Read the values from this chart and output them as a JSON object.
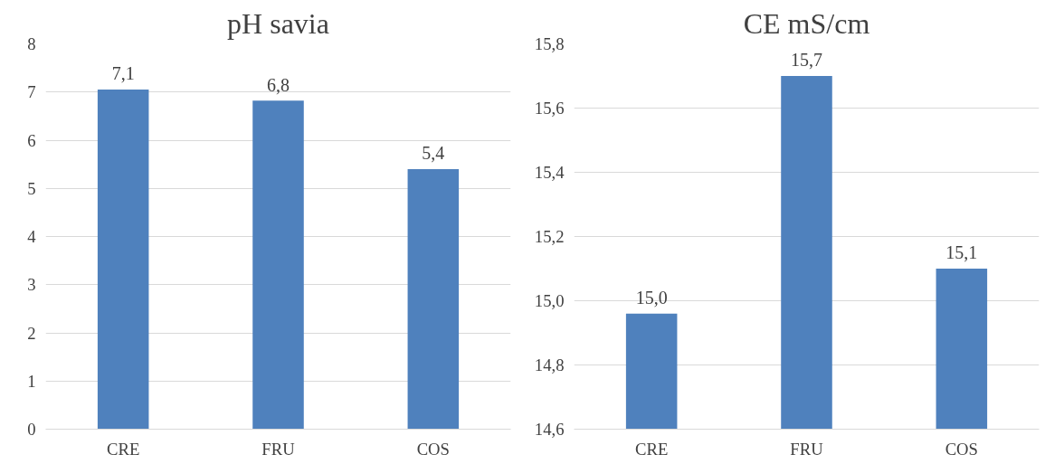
{
  "chart_data": [
    {
      "type": "bar",
      "title": "pH savia",
      "categories": [
        "CRE",
        "FRU",
        "COS"
      ],
      "values": [
        7.05,
        6.82,
        5.4
      ],
      "value_labels": [
        "7,1",
        "6,8",
        "5,4"
      ],
      "color": "#4f81bd",
      "ylim": [
        0,
        8
      ],
      "yticks": [
        0,
        1,
        2,
        3,
        4,
        5,
        6,
        7,
        8
      ],
      "grid": "y"
    },
    {
      "type": "bar",
      "title": "CE mS/cm",
      "categories": [
        "CRE",
        "FRU",
        "COS"
      ],
      "values": [
        14.96,
        15.7,
        15.1
      ],
      "value_labels": [
        "15,0",
        "15,7",
        "15,1"
      ],
      "color": "#4f81bd",
      "ylim": [
        14.6,
        15.8
      ],
      "yticks": [
        {
          "value": 14.6,
          "label": "14,6"
        },
        {
          "value": 14.8,
          "label": "14,8"
        },
        {
          "value": 15.0,
          "label": "15,0"
        },
        {
          "value": 15.2,
          "label": "15,2"
        },
        {
          "value": 15.4,
          "label": "15,4"
        },
        {
          "value": 15.6,
          "label": "15,6"
        },
        {
          "value": 15.8,
          "label": "15,8"
        }
      ],
      "grid": "y"
    }
  ]
}
